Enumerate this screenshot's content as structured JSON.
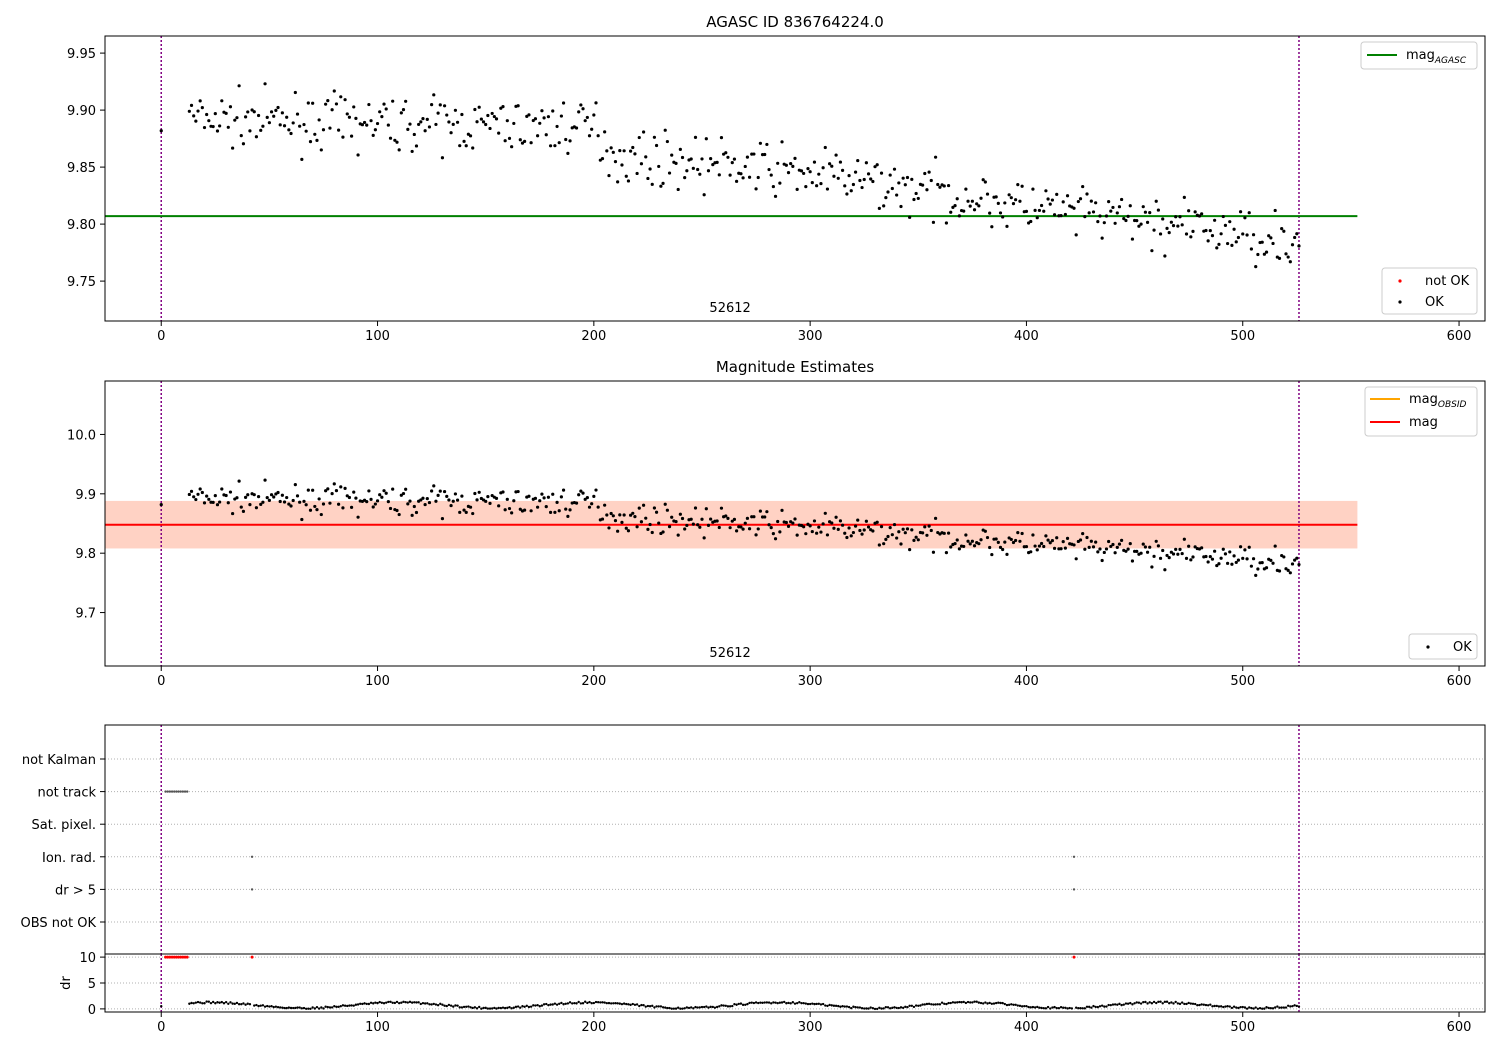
{
  "chart_data": [
    {
      "type": "scatter",
      "title": "AGASC ID 836764224.0",
      "xlim": [
        -26,
        612
      ],
      "ylim": [
        9.715,
        9.965
      ],
      "xticks": [
        0,
        100,
        200,
        300,
        400,
        500,
        600
      ],
      "yticks": [
        9.75,
        9.8,
        9.85,
        9.9,
        9.95
      ],
      "ytick_labels": [
        "9.75",
        "9.80",
        "9.85",
        "9.90",
        "9.95"
      ],
      "vlines": [
        0,
        526
      ],
      "hline": {
        "name_main": "mag",
        "name_sub": "AGASC",
        "y": 9.807,
        "xmax": 553,
        "color": "#008000"
      },
      "obsid_label": {
        "text": "52612",
        "x": 263
      },
      "legends": {
        "top": [
          {
            "main": "mag",
            "sub": "AGASC",
            "color": "#008000"
          }
        ],
        "bottom": [
          {
            "label": "not OK",
            "color": "#ff0000"
          },
          {
            "label": "OK",
            "color": "#000000"
          }
        ]
      },
      "series": [
        {
          "name": "OK",
          "color": "#000000",
          "trend": [
            [
              0,
              9.893
            ],
            [
              100,
              9.888
            ],
            [
              200,
              9.885
            ],
            [
              210,
              9.86
            ],
            [
              300,
              9.845
            ],
            [
              400,
              9.815
            ],
            [
              526,
              9.785
            ]
          ]
        }
      ]
    },
    {
      "type": "scatter",
      "title": "Magnitude Estimates",
      "xlim": [
        -26,
        612
      ],
      "ylim": [
        9.61,
        10.09
      ],
      "xticks": [
        0,
        100,
        200,
        300,
        400,
        500,
        600
      ],
      "yticks": [
        9.7,
        9.8,
        9.9,
        10.0
      ],
      "ytick_labels": [
        "9.7",
        "9.8",
        "9.9",
        "10.0"
      ],
      "vlines": [
        0,
        526
      ],
      "mag_line": {
        "y": 9.848,
        "xmax": 553,
        "color": "#ff0000"
      },
      "bands": [
        {
          "y0": 9.808,
          "y1": 9.888,
          "color": "#ffb3c1",
          "alpha": 0.35
        },
        {
          "y0": 9.808,
          "y1": 9.888,
          "color": "#ffb380",
          "alpha": 0.35
        }
      ],
      "obsid_label": {
        "text": "52612",
        "x": 263
      },
      "legends": {
        "top": [
          {
            "main": "mag",
            "sub": "OBSID",
            "color": "#ffa500"
          },
          {
            "main": "mag",
            "sub": "",
            "color": "#ff0000"
          }
        ],
        "bottom": [
          {
            "label": "OK",
            "color": "#000000"
          }
        ]
      },
      "series": [
        {
          "name": "OK",
          "color": "#000000",
          "trend": [
            [
              0,
              9.893
            ],
            [
              100,
              9.888
            ],
            [
              200,
              9.885
            ],
            [
              210,
              9.86
            ],
            [
              300,
              9.845
            ],
            [
              400,
              9.815
            ],
            [
              526,
              9.785
            ]
          ]
        }
      ]
    },
    {
      "type": "scatter",
      "title": "",
      "xlim": [
        -26,
        612
      ],
      "categories": [
        "not Kalman",
        "not track",
        "Sat. pixel.",
        "Ion. rad.",
        "dr > 5",
        "OBS not OK"
      ],
      "flags": {
        "not track": [
          2,
          3,
          4,
          5,
          6,
          7,
          8,
          9,
          10,
          11,
          12
        ],
        "Ion. rad.": [
          42,
          422
        ],
        "dr > 5": [
          42,
          422
        ]
      },
      "vlines": [
        0,
        526
      ]
    },
    {
      "type": "scatter",
      "title": "",
      "ylabel": "dr",
      "xlim": [
        -26,
        612
      ],
      "ylim": [
        -0.6,
        10.6
      ],
      "xticks": [
        0,
        100,
        200,
        300,
        400,
        500,
        600
      ],
      "yticks": [
        0,
        5,
        10
      ],
      "ytick_labels": [
        "0",
        "5",
        "10"
      ],
      "vlines": [
        0,
        526
      ],
      "outliers": [
        2,
        3,
        4,
        5,
        6,
        7,
        8,
        9,
        10,
        11,
        12,
        42,
        422
      ],
      "outlier_value": 10
    }
  ]
}
